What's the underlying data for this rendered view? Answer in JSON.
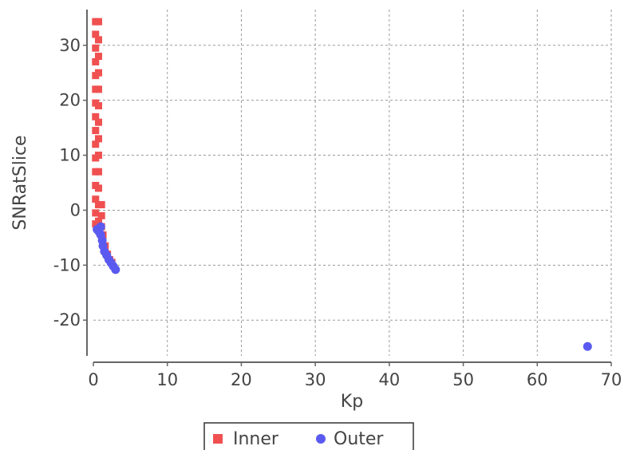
{
  "chart_data": {
    "type": "scatter",
    "xlabel": "Kp",
    "ylabel": "SNRatSlice",
    "xlim": [
      0,
      70
    ],
    "ylim": [
      -26.5,
      36.5
    ],
    "x_ticks": [
      0,
      10,
      20,
      30,
      40,
      50,
      60,
      70
    ],
    "y_ticks": [
      -20,
      -10,
      0,
      10,
      20,
      30
    ],
    "grid": true,
    "legend_position": "bottom",
    "series": [
      {
        "name": "Inner",
        "marker": "square",
        "color": "#f05050",
        "points": [
          {
            "x": 0.3,
            "y": 34.3
          },
          {
            "x": 0.3,
            "y": 32.0
          },
          {
            "x": 0.3,
            "y": 29.5
          },
          {
            "x": 0.3,
            "y": 27.0
          },
          {
            "x": 0.3,
            "y": 24.5
          },
          {
            "x": 0.3,
            "y": 22.0
          },
          {
            "x": 0.3,
            "y": 19.5
          },
          {
            "x": 0.3,
            "y": 17.0
          },
          {
            "x": 0.3,
            "y": 14.5
          },
          {
            "x": 0.3,
            "y": 12.0
          },
          {
            "x": 0.3,
            "y": 9.5
          },
          {
            "x": 0.3,
            "y": 7.0
          },
          {
            "x": 0.3,
            "y": 4.5
          },
          {
            "x": 0.3,
            "y": 2.0
          },
          {
            "x": 0.3,
            "y": -0.5
          },
          {
            "x": 0.3,
            "y": -2.5
          },
          {
            "x": 0.7,
            "y": 34.3
          },
          {
            "x": 0.7,
            "y": 31.0
          },
          {
            "x": 0.7,
            "y": 28.0
          },
          {
            "x": 0.7,
            "y": 25.0
          },
          {
            "x": 0.7,
            "y": 22.0
          },
          {
            "x": 0.7,
            "y": 19.0
          },
          {
            "x": 0.7,
            "y": 16.0
          },
          {
            "x": 0.7,
            "y": 13.0
          },
          {
            "x": 0.7,
            "y": 10.0
          },
          {
            "x": 0.7,
            "y": 7.0
          },
          {
            "x": 0.7,
            "y": 4.0
          },
          {
            "x": 0.7,
            "y": 1.0
          },
          {
            "x": 0.7,
            "y": -2.0
          },
          {
            "x": 1.1,
            "y": 1.0
          },
          {
            "x": 1.1,
            "y": -1.0
          },
          {
            "x": 1.1,
            "y": -3.0
          },
          {
            "x": 1.3,
            "y": -4.5
          },
          {
            "x": 1.6,
            "y": -6.5
          },
          {
            "x": 1.9,
            "y": -8.0
          },
          {
            "x": 2.2,
            "y": -9.0
          },
          {
            "x": 2.5,
            "y": -9.5
          }
        ]
      },
      {
        "name": "Outer",
        "marker": "circle",
        "color": "#5a5af0",
        "points": [
          {
            "x": 0.5,
            "y": -3.5
          },
          {
            "x": 0.8,
            "y": -4.0
          },
          {
            "x": 1.0,
            "y": -4.5
          },
          {
            "x": 1.2,
            "y": -5.5
          },
          {
            "x": 1.3,
            "y": -6.5
          },
          {
            "x": 1.5,
            "y": -7.5
          },
          {
            "x": 1.8,
            "y": -8.2
          },
          {
            "x": 2.1,
            "y": -9.0
          },
          {
            "x": 2.4,
            "y": -9.6
          },
          {
            "x": 2.7,
            "y": -10.2
          },
          {
            "x": 3.0,
            "y": -10.8
          },
          {
            "x": 1.0,
            "y": -3.0
          },
          {
            "x": 66.8,
            "y": -24.8
          }
        ]
      }
    ]
  }
}
